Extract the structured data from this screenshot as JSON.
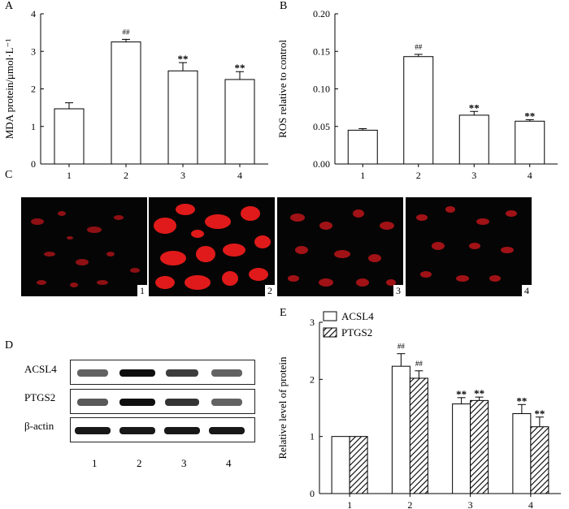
{
  "panels": {
    "a": "A",
    "b": "B",
    "c": "C",
    "d": "D",
    "e": "E"
  },
  "chart_data": [
    {
      "id": "A",
      "type": "bar",
      "categories": [
        "1",
        "2",
        "3",
        "4"
      ],
      "values": [
        1.47,
        3.25,
        2.48,
        2.25
      ],
      "errors": [
        0.16,
        0.07,
        0.22,
        0.21
      ],
      "annotations": [
        "",
        "##",
        "**",
        "**"
      ],
      "ylabel": "MDA protein/μmol·L⁻¹",
      "ylim": [
        0,
        4
      ],
      "yticks": [
        "0",
        "1",
        "2",
        "3",
        "4"
      ]
    },
    {
      "id": "B",
      "type": "bar",
      "categories": [
        "1",
        "2",
        "3",
        "4"
      ],
      "values": [
        0.045,
        0.143,
        0.065,
        0.057
      ],
      "errors": [
        0.002,
        0.003,
        0.005,
        0.002
      ],
      "annotations": [
        "",
        "##",
        "**",
        "**"
      ],
      "ylabel": "ROS relative to control",
      "ylim": [
        0,
        0.2
      ],
      "yticks": [
        "0.00",
        "0.05",
        "0.10",
        "0.15",
        "0.20"
      ]
    },
    {
      "id": "E",
      "type": "bar",
      "categories": [
        "1",
        "2",
        "3",
        "4"
      ],
      "series": [
        {
          "name": "ACSL4",
          "values": [
            1.0,
            2.23,
            1.57,
            1.4
          ],
          "errors": [
            0.0,
            0.22,
            0.11,
            0.16
          ],
          "annotations": [
            "",
            "##",
            "**",
            "**"
          ]
        },
        {
          "name": "PTGS2",
          "values": [
            1.0,
            2.02,
            1.63,
            1.17
          ],
          "errors": [
            0.0,
            0.13,
            0.06,
            0.17
          ],
          "annotations": [
            "",
            "##",
            "**",
            "**"
          ]
        }
      ],
      "ylabel": "Relative level of protein",
      "ylim": [
        0,
        3
      ],
      "yticks": [
        "0",
        "1",
        "2",
        "3"
      ]
    }
  ],
  "images": {
    "labels": [
      "1",
      "2",
      "3",
      "4"
    ]
  },
  "western": {
    "rows": [
      "ACSL4",
      "PTGS2",
      "β-actin"
    ],
    "lanes": [
      "1",
      "2",
      "3",
      "4"
    ],
    "intensities": [
      [
        0.55,
        1.0,
        0.75,
        0.55
      ],
      [
        0.6,
        1.0,
        0.8,
        0.55
      ],
      [
        0.95,
        0.95,
        0.95,
        0.95
      ]
    ]
  },
  "colors": {
    "bar": "#ffffff",
    "stroke": "#000000",
    "cell_red": "#e01a1a"
  }
}
